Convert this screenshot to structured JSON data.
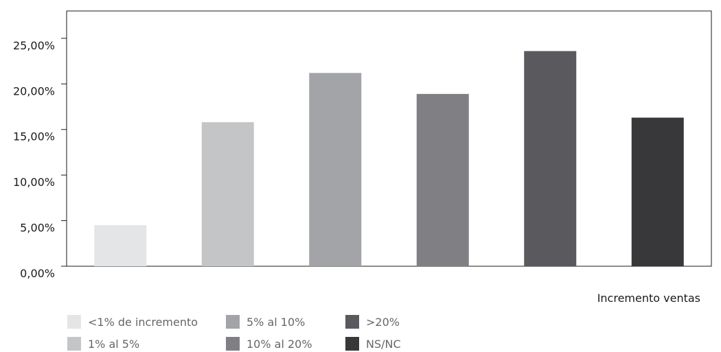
{
  "chart_data": {
    "type": "bar",
    "categories": [
      "<1% de incremento",
      "1% al 5%",
      "5% al 10%",
      "10% al 20%",
      ">20%",
      "NS/NC"
    ],
    "values": [
      4.5,
      15.8,
      21.2,
      18.9,
      23.6,
      16.3
    ],
    "colors": [
      "#e4e5e6",
      "#c3c5c7",
      "#a3a4a7",
      "#807f83",
      "#5a595e",
      "#38373a"
    ],
    "yticks": [
      "0,00%",
      "5,00%",
      "10,00%",
      "15,00%",
      "20,00%",
      "25,00%"
    ],
    "ylim": [
      0,
      28
    ],
    "grid": false,
    "xlabel": "Incremento ventas",
    "ylabel": "",
    "title": "",
    "legend_position": "bottom-left"
  }
}
